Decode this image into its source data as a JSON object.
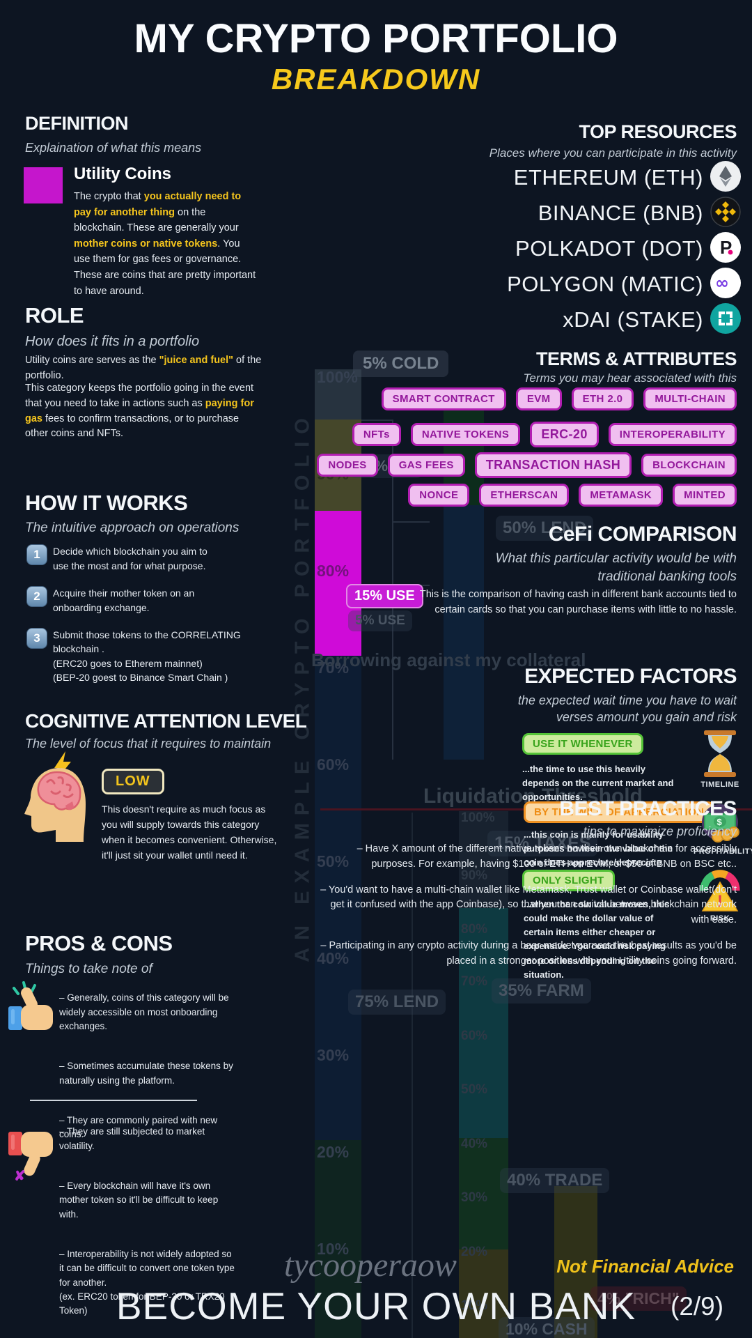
{
  "header": {
    "title": "MY CRYPTO PORTFOLIO",
    "subtitle": "BREAKDOWN"
  },
  "definition": {
    "heading": "DEFINITION",
    "sub": "Explaination of what this means",
    "term": "Utility Coins",
    "body": [
      {
        "t": "The crypto that "
      },
      {
        "t": "you actually need to pay for another thing",
        "y": true
      },
      {
        "t": " on the blockchain. These are generally your "
      },
      {
        "t": "mother coins or native tokens",
        "y": true
      },
      {
        "t": ". You use them for gas fees or governance. These are coins that are pretty important to have around."
      }
    ]
  },
  "role": {
    "heading": "ROLE",
    "sub": "How does it fits in a portfolio",
    "p1": [
      {
        "t": "Utility coins are serves  as the "
      },
      {
        "t": "\"juice and fuel\"",
        "y": true
      },
      {
        "t": " of the portfolio."
      }
    ],
    "p2": [
      {
        "t": "This category keeps the portfolio going in the event that you need to take in actions such as "
      },
      {
        "t": "paying for gas",
        "y": true
      },
      {
        "t": " fees to confirm transactions, or to purchase other coins and NFTs."
      }
    ]
  },
  "how_it_works": {
    "heading": "HOW IT WORKS",
    "sub": "The intuitive approach on operations",
    "steps": [
      {
        "num": "1",
        "text": "Decide which blockchain you aim to\nuse the most and for what purpose."
      },
      {
        "num": "2",
        "text": "Acquire  their mother token on an\nonboarding exchange."
      },
      {
        "num": "3",
        "text": "Submit those tokens to the CORRELATING\nblockchain .\n(ERC20 goes to Etherem mainnet)\n(BEP-20 goest to Binance Smart Chain )"
      }
    ]
  },
  "cognitive": {
    "heading": "COGNITIVE ATTENTION LEVEL",
    "sub": "The level of focus that it requires to maintain",
    "badge": "LOW",
    "body": "This doesn't require as much focus as you will supply towards this category when it becomes convenient. Otherwise, it'll just sit your wallet until need it."
  },
  "pros_cons": {
    "heading": "PROS & CONS",
    "sub": "Things to take note of",
    "pros": [
      "– Generally, coins of this category will be widely accessible on most onboarding exchanges.",
      "– Sometimes accumulate these tokens by naturally using the platform.",
      "– They are commonly paired with new coins."
    ],
    "cons": [
      "– They are still subjected to market volatility.",
      "– Every blockchain will have it's own mother token so it'll be difficult to keep with.",
      "– Interoperability is not widely adopted so it can be difficult to convert one token type for another.\n(ex. ERC20 token for BEP-20 or TRX20 Token)"
    ]
  },
  "top_resources": {
    "heading": "TOP RESOURCES",
    "sub": "Places where you can participate in this activity",
    "items": [
      {
        "name": "ETHEREUM (ETH)",
        "icon": "ethereum-icon"
      },
      {
        "name": "BINANCE (BNB)",
        "icon": "binance-icon"
      },
      {
        "name": "POLKADOT (DOT)",
        "icon": "polkadot-icon"
      },
      {
        "name": "POLYGON (MATIC)",
        "icon": "polygon-icon"
      },
      {
        "name": "xDAI (STAKE)",
        "icon": "xdai-icon"
      }
    ]
  },
  "terms": {
    "heading": "TERMS & ATTRIBUTES",
    "sub": "Terms you may hear associated with this",
    "rows": [
      [
        "SMART CONTRACT",
        "EVM",
        "ETH 2.0",
        "MULTI-CHAIN"
      ],
      [
        "NFTs",
        "NATIVE TOKENS",
        "ERC-20",
        "INTEROPERABILITY"
      ],
      [
        "NODES",
        "GAS FEES",
        "TRANSACTION HASH",
        "BLOCKCHAIN"
      ],
      [
        "NONCE",
        "ETHERSCAN",
        "METAMASK",
        "MINTED"
      ]
    ]
  },
  "cefi": {
    "heading": "CeFi COMPARISON",
    "sub": "What this particular activity would be with traditional banking tools",
    "body": "This is the comparison of having cash in different bank accounts tied to certain cards so that you can purchase items  with little to no hassle."
  },
  "expected": {
    "heading": "EXPECTED FACTORS",
    "sub": "the expected wait time you have to wait verses amount you gain and risk",
    "factors": [
      {
        "badge": "USE IT WHENEVER",
        "style": "green",
        "text": "...the time to use this heavily depends on the current market and opportunities.",
        "icon": "hourglass-icon",
        "icon_label": "TIMELINE"
      },
      {
        "badge": "BY THE WILL OF APPERCIATION",
        "style": "orange",
        "text": "...this coin is mainly for usability purposes however the value of the coin does appreciate/depreciate over time.",
        "icon": "money-icon",
        "icon_label": "PROFITABILITY"
      },
      {
        "badge": "ONLY SLIGHT",
        "style": "green",
        "text": "...when the coin value moves, this could make the dollar value of certain items either cheaper or expensive.  You could risk paying more or less depending on the situation.",
        "icon": "gauge-icon",
        "icon_label": "RISK"
      }
    ]
  },
  "best_practices": {
    "heading": "BEST PRACTICES",
    "sub": "tips to maximize proficiency",
    "items": [
      "– Have  X amount of the different native tokens  on their own blockchain for accessibly purposes. For example, having $100 of ETH on EVM, or $50 of BNB on BSC etc..",
      "– You'd want to have a multi-chain wallet like Metamask, Trust wallet or Coinbase wallet(don't get it confused with the app Coinbase), so that you can switch between blockchain network with ease.",
      "– Participating in any crypto activity during a bear market garners the best results as you'd be placed in a stronger position with your Utility coins going forward."
    ]
  },
  "chart": {
    "vertical_label": "AN EXAMPLE CRYPTO PORTFOLIO",
    "axis": [
      "100%",
      "90%",
      "80%",
      "70%",
      "60%",
      "50%",
      "40%",
      "30%",
      "20%",
      "10%"
    ],
    "mini_axis": [
      "100%",
      "90%",
      "80%",
      "70%",
      "60%",
      "50%",
      "40%",
      "30%",
      "20%",
      "10%"
    ],
    "labels": {
      "cold": "5% COLD",
      "cash": "10% CASH",
      "use": "15% USE",
      "use_dim": "5% USE",
      "lend50": "50% LEND",
      "borrowing": "Borrowing against my collateral",
      "liquidation": "Liquidation Threshold",
      "taxes": "15% TAXES",
      "farm": "35% FARM",
      "lend75": "75% LEND",
      "trade": "40% TRADE",
      "rich": "4% \"RICH\"",
      "cash10": "10% CASH"
    },
    "allocation_highlight": {
      "segment": "USE",
      "value_pct": 15,
      "color": "#c71cd6"
    }
  },
  "footer": {
    "handle": "tycooperaow",
    "disclaimer": "Not Financial Advice",
    "title": "BECOME YOUR OWN BANK",
    "page": "(2/9)"
  }
}
